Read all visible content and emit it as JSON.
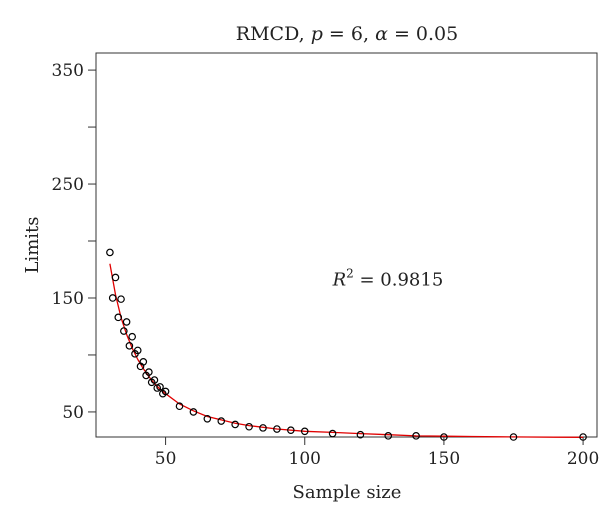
{
  "chart_data": {
    "type": "scatter",
    "title_parts": {
      "prefix": "RMCD, ",
      "p_sym": "p",
      "p_val": " = 6, ",
      "alpha_sym": "α",
      "alpha_val": " = 0.05"
    },
    "xlabel": "Sample size",
    "ylabel": "Limits",
    "xlim": [
      25,
      205
    ],
    "ylim": [
      28,
      365
    ],
    "xticks": [
      50,
      100,
      150,
      200
    ],
    "yticks": [
      50,
      150,
      250,
      350
    ],
    "annotation": {
      "base": "R",
      "sup": "2",
      "rest": " = 0.9815",
      "x": 110,
      "y": 161
    },
    "points": {
      "x": [
        30,
        31,
        32,
        33,
        34,
        35,
        36,
        37,
        38,
        39,
        40,
        41,
        42,
        43,
        44,
        45,
        46,
        47,
        48,
        49,
        50,
        55,
        60,
        65,
        70,
        75,
        80,
        85,
        90,
        95,
        100,
        110,
        120,
        130,
        140,
        150,
        175,
        200
      ],
      "y": [
        190,
        150,
        168,
        133,
        149,
        121,
        129,
        108,
        116,
        101,
        104,
        90,
        94,
        82,
        85,
        76,
        78,
        71,
        72,
        66,
        68,
        55,
        50,
        44,
        42,
        39,
        37,
        36,
        35,
        34,
        33,
        31,
        30,
        29,
        29,
        28,
        28,
        28
      ]
    },
    "fit_line": {
      "x": [
        30,
        32,
        34,
        36,
        38,
        40,
        42,
        44,
        46,
        48,
        50,
        55,
        60,
        65,
        70,
        75,
        80,
        90,
        100,
        110,
        120,
        130,
        140,
        150,
        160,
        170,
        180,
        190,
        200
      ],
      "y": [
        180,
        153,
        133,
        118,
        106,
        96,
        88,
        81,
        75,
        70,
        66,
        57,
        51,
        46,
        43,
        40,
        38,
        35,
        33,
        32,
        31,
        30,
        29,
        28.7,
        28.4,
        28.2,
        28,
        27.8,
        27.7
      ]
    },
    "colors": {
      "points": "#000000",
      "fit": "#e00000",
      "axis": "#333333"
    },
    "grid": false,
    "legend": "none"
  }
}
